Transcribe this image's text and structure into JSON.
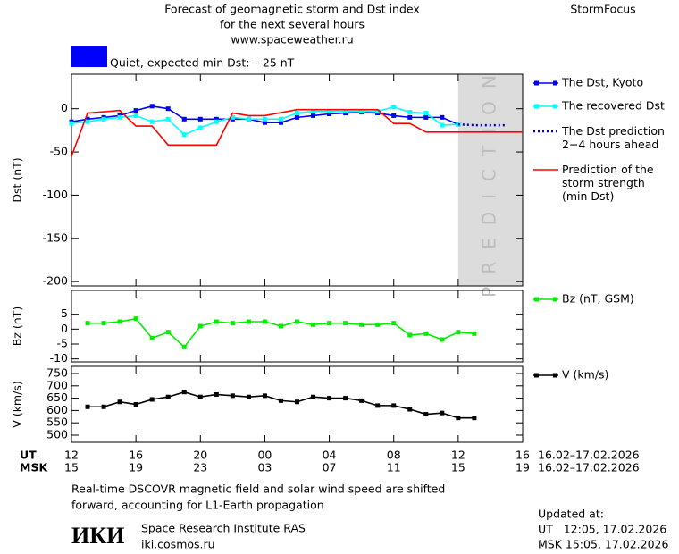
{
  "header": {
    "title_lines": [
      "Forecast of geomagnetic storm and Dst index",
      "for the next several hours",
      "www.spaceweather.ru"
    ],
    "brand": "StormFocus",
    "status": "Quiet, expected min Dst: −25 nT",
    "status_color": "#0000ff"
  },
  "chart_data": [
    {
      "type": "line",
      "y_label": "Dst (nT)",
      "xlim": [
        0,
        28
      ],
      "ylim": [
        -205,
        40
      ],
      "yticks": [
        0,
        -50,
        -100,
        -150,
        -200
      ],
      "prediction_region": [
        24,
        28
      ],
      "prediction_label": "PREDICTION",
      "series": [
        {
          "name": "The Dst, Kyoto",
          "color": "#0000ff",
          "style": "solid",
          "marker": "square",
          "x": [
            0,
            1,
            2,
            3,
            4,
            5,
            6,
            7,
            8,
            9,
            10,
            11,
            12,
            13,
            14,
            15,
            16,
            17,
            18,
            19,
            20,
            21,
            22,
            23,
            24
          ],
          "values": [
            -15,
            -12,
            -10,
            -8,
            -2,
            3,
            0,
            -12,
            -12,
            -12,
            -12,
            -12,
            -16,
            -16,
            -10,
            -8,
            -6,
            -5,
            -4,
            -5,
            -8,
            -10,
            -10,
            -10,
            -18
          ]
        },
        {
          "name": "The recovered Dst",
          "color": "#00ffff",
          "style": "solid",
          "marker": "square",
          "x": [
            0,
            1,
            2,
            3,
            4,
            5,
            6,
            7,
            8,
            9,
            10,
            11,
            12,
            13,
            14,
            15,
            16,
            17,
            18,
            19,
            20,
            21,
            22,
            23,
            24
          ],
          "values": [
            -17,
            -15,
            -12,
            -10,
            -8,
            -15,
            -12,
            -30,
            -22,
            -15,
            -10,
            -12,
            -12,
            -12,
            -5,
            -3,
            -3,
            -3,
            -3,
            -3,
            2,
            -4,
            -5,
            -19,
            -18
          ]
        },
        {
          "name": "The Dst prediction\n2−4 hours ahead",
          "color": "#0000cc",
          "style": "dotted",
          "marker": "none",
          "x": [
            24,
            25,
            26,
            27
          ],
          "values": [
            -18,
            -19,
            -19,
            -19
          ]
        },
        {
          "name": "Prediction of the\nstorm strength\n(min Dst)",
          "color": "#ff0000",
          "style": "solid",
          "marker": "none",
          "x": [
            0,
            1,
            3,
            4,
            5,
            6,
            9,
            10,
            11,
            12,
            14,
            19,
            20,
            21,
            22,
            28
          ],
          "values": [
            -55,
            -5,
            -2,
            -20,
            -20,
            -42,
            -42,
            -5,
            -8,
            -8,
            -1,
            -1,
            -17,
            -17,
            -27,
            -27
          ]
        }
      ]
    },
    {
      "type": "line",
      "y_label": "Bz (nT)",
      "xlim": [
        0,
        28
      ],
      "ylim": [
        -11,
        13
      ],
      "yticks": [
        5,
        0,
        -5,
        -10
      ],
      "series": [
        {
          "name": "Bz (nT, GSM)",
          "color": "#00ee00",
          "style": "solid",
          "marker": "square",
          "x": [
            1,
            2,
            3,
            4,
            5,
            6,
            7,
            8,
            9,
            10,
            11,
            12,
            13,
            14,
            15,
            16,
            17,
            18,
            19,
            20,
            21,
            22,
            23,
            24,
            25
          ],
          "values": [
            2,
            2,
            2.5,
            3.5,
            -3,
            -1,
            -6,
            1,
            2.5,
            2,
            2.5,
            2.5,
            1,
            2.5,
            1.5,
            2,
            2,
            1.5,
            1.5,
            2,
            -2,
            -1.5,
            -3.5,
            -1,
            -1.5
          ]
        }
      ]
    },
    {
      "type": "line",
      "y_label": "V (km/s)",
      "xlim": [
        0,
        28
      ],
      "ylim": [
        471,
        779
      ],
      "yticks": [
        500,
        550,
        600,
        650,
        700,
        750
      ],
      "xticks": [
        {
          "value": 0,
          "label": "12"
        },
        {
          "value": 4,
          "label": "16"
        },
        {
          "value": 8,
          "label": "20"
        },
        {
          "value": 12,
          "label": "00"
        },
        {
          "value": 16,
          "label": "04"
        },
        {
          "value": 20,
          "label": "08"
        },
        {
          "value": 24,
          "label": "12"
        },
        {
          "value": 28,
          "label": "16"
        }
      ],
      "msk_ticks": [
        {
          "value": 0,
          "label": "15"
        },
        {
          "value": 4,
          "label": "19"
        },
        {
          "value": 8,
          "label": "23"
        },
        {
          "value": 12,
          "label": "03"
        },
        {
          "value": 16,
          "label": "07"
        },
        {
          "value": 20,
          "label": "11"
        },
        {
          "value": 24,
          "label": "15"
        },
        {
          "value": 28,
          "label": "19"
        }
      ],
      "x_row_labels": [
        "UT",
        "MSK"
      ],
      "date_range": "16.02–17.02.2026",
      "series": [
        {
          "name": "V (km/s)",
          "color": "#000000",
          "style": "solid",
          "marker": "square",
          "x": [
            1,
            2,
            3,
            4,
            5,
            6,
            7,
            8,
            9,
            10,
            11,
            12,
            13,
            14,
            15,
            16,
            17,
            18,
            19,
            20,
            21,
            22,
            23,
            24,
            25
          ],
          "values": [
            615,
            615,
            635,
            625,
            645,
            655,
            675,
            655,
            665,
            660,
            655,
            660,
            640,
            635,
            655,
            650,
            650,
            640,
            620,
            620,
            605,
            585,
            590,
            570,
            570
          ]
        }
      ]
    }
  ],
  "footer": {
    "note_lines": [
      "Real-time DSCOVR magnetic field and solar wind speed are shifted",
      "forward, accounting for L1-Earth propagation"
    ],
    "logo": "ИКИ",
    "institute": "Space Research Institute RAS",
    "site": "iki.cosmos.ru",
    "updated_title": "Updated at:",
    "updated_lines": [
      "UT   12:05, 17.02.2026",
      "MSK 15:05, 17.02.2026"
    ]
  }
}
